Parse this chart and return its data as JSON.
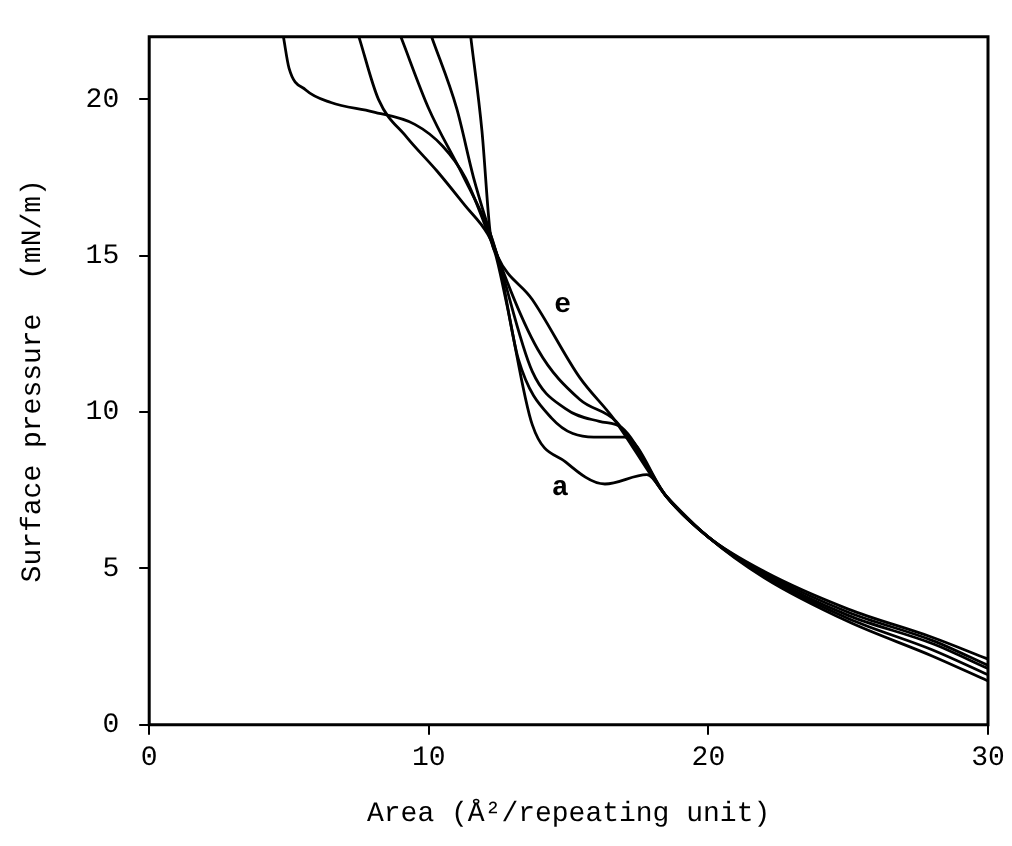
{
  "chart_data": {
    "type": "line",
    "xlabel": "Area (Å²/repeating unit)",
    "ylabel": "Surface pressure  (mN/m)",
    "xlim": [
      0,
      30
    ],
    "xticks": [
      0,
      10,
      20,
      30
    ],
    "ylim": [
      0,
      22
    ],
    "yticks": [
      0,
      5,
      10,
      15,
      20
    ],
    "grid": false,
    "legend": false,
    "marker": "none",
    "line_style": "solid",
    "series": [
      {
        "color": "#000000",
        "x": [
          4.8,
          5.0,
          5.6,
          6.5,
          8,
          9.5,
          10.5,
          11.3,
          12.0,
          12.4,
          12.8,
          13.7,
          14.9,
          16.3,
          17.8,
          18.5,
          20,
          22,
          25,
          28,
          30
        ],
        "values": [
          22,
          21,
          20.3,
          19.9,
          19.6,
          19.2,
          18.5,
          17.5,
          16.0,
          15.0,
          13.4,
          9.6,
          8.4,
          7.7,
          8.0,
          7.3,
          6.0,
          4.7,
          3.3,
          2.2,
          1.4
        ]
      },
      {
        "color": "#000000",
        "x": [
          7.5,
          8.2,
          9.2,
          10.3,
          11.3,
          12.1,
          12.45,
          13.2,
          14.4,
          15.9,
          17.0,
          18.5,
          20,
          22,
          25,
          28,
          30
        ],
        "values": [
          22,
          20,
          18.8,
          17.7,
          16.6,
          15.7,
          15.0,
          11.7,
          9.8,
          9.2,
          9.2,
          7.3,
          6.0,
          4.75,
          3.4,
          2.4,
          1.6
        ]
      },
      {
        "color": "#000000",
        "x": [
          9.0,
          10.0,
          11.2,
          12.2,
          12.45,
          13.7,
          14.9,
          16.1,
          16.9,
          18.5,
          20,
          22,
          25,
          28,
          30
        ],
        "values": [
          22,
          19.7,
          17.6,
          15.7,
          15.0,
          11.3,
          10.1,
          9.7,
          9.5,
          7.3,
          6.0,
          4.8,
          3.5,
          2.6,
          1.8
        ]
      },
      {
        "color": "#000000",
        "x": [
          10.1,
          11.0,
          11.6,
          12.2,
          12.45,
          13.9,
          15.4,
          16.7,
          18.5,
          20,
          22,
          25,
          28,
          30
        ],
        "values": [
          22,
          19.7,
          17.5,
          15.7,
          15.0,
          12.0,
          10.4,
          9.7,
          7.3,
          6.0,
          4.85,
          3.6,
          2.7,
          1.9
        ]
      },
      {
        "color": "#000000",
        "x": [
          11.5,
          11.9,
          12.2,
          12.45,
          13.7,
          15.4,
          16.6,
          18.5,
          20,
          22,
          25,
          28,
          30
        ],
        "values": [
          22,
          19,
          15.7,
          15.0,
          13.6,
          11.1,
          9.8,
          7.3,
          6.0,
          4.9,
          3.7,
          2.8,
          2.1
        ]
      }
    ],
    "annotations": [
      "e",
      "a"
    ]
  }
}
